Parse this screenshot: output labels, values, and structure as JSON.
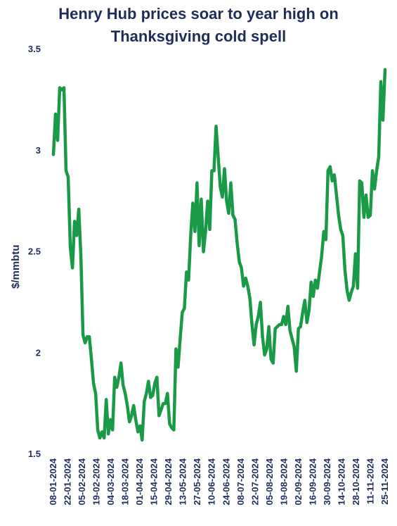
{
  "chart_data": {
    "type": "line",
    "title": "Henry Hub prices soar to year high on Thanksgiving cold spell",
    "title_lines": [
      "Henry Hub prices soar to year high on",
      "Thanksgiving cold spell"
    ],
    "ylabel": "$/mmbtu",
    "xlabel": "",
    "ylim": [
      1.5,
      3.5
    ],
    "yticks": [
      "1.5",
      "2",
      "2.5",
      "3",
      "3.5"
    ],
    "grid": false,
    "line_color": "#1a9a47",
    "text_color": "#1f2d5a",
    "x_tick_labels": [
      "08-01-2024",
      "22-01-2024",
      "05-02-2024",
      "19-02-2024",
      "04-03-2024",
      "18-03-2024",
      "01-04-2024",
      "15-04-2024",
      "29-04-2024",
      "13-05-2024",
      "27-05-2024",
      "10-06-2024",
      "24-06-2024",
      "08-07-2024",
      "22-07-2024",
      "05-08-2024",
      "19-08-2024",
      "02-09-2024",
      "16-09-2024",
      "30-09-2024",
      "14-10-2024",
      "28-10-2024",
      "11-11-2024",
      "25-11-2024"
    ],
    "series": [
      {
        "values": [
          2.98,
          3.18,
          3.05,
          3.31,
          3.3,
          3.31,
          2.9,
          2.87,
          2.52,
          2.42,
          2.65,
          2.58,
          2.71,
          2.48,
          2.09,
          2.05,
          2.08,
          2.08,
          1.97,
          1.85,
          1.8,
          1.62,
          1.58,
          1.61,
          1.58,
          1.77,
          1.6,
          1.67,
          1.62,
          1.88,
          1.83,
          1.88,
          1.95,
          1.84,
          1.8,
          1.74,
          1.66,
          1.69,
          1.74,
          1.67,
          1.61,
          1.64,
          1.57,
          1.76,
          1.8,
          1.86,
          1.78,
          1.79,
          1.85,
          1.88,
          1.69,
          1.72,
          1.75,
          1.75,
          1.8,
          1.65,
          1.63,
          1.62,
          2.02,
          1.93,
          2.07,
          2.2,
          2.22,
          2.4,
          2.36,
          2.58,
          2.74,
          2.6,
          2.84,
          2.53,
          2.76,
          2.5,
          2.6,
          2.75,
          2.61,
          2.9,
          2.9,
          3.12,
          2.97,
          2.82,
          2.77,
          2.91,
          2.75,
          2.69,
          2.84,
          2.68,
          2.66,
          2.54,
          2.45,
          2.42,
          2.33,
          2.37,
          2.33,
          2.27,
          2.14,
          2.04,
          2.14,
          2.18,
          2.25,
          2.08,
          1.99,
          2.02,
          2.13,
          1.97,
          1.95,
          2.12,
          2.13,
          2.14,
          2.14,
          2.18,
          2.14,
          2.23,
          2.11,
          2.07,
          2.03,
          1.91,
          2.12,
          2.13,
          2.2,
          2.26,
          2.15,
          2.21,
          2.35,
          2.28,
          2.36,
          2.32,
          2.4,
          2.48,
          2.6,
          2.56,
          2.9,
          2.92,
          2.85,
          2.88,
          2.78,
          2.68,
          2.61,
          2.58,
          2.41,
          2.31,
          2.26,
          2.3,
          2.33,
          2.49,
          2.32,
          2.85,
          2.84,
          2.67,
          2.78,
          2.67,
          2.68,
          2.9,
          2.81,
          2.9,
          2.97,
          3.34,
          3.15,
          3.4
        ]
      }
    ]
  }
}
